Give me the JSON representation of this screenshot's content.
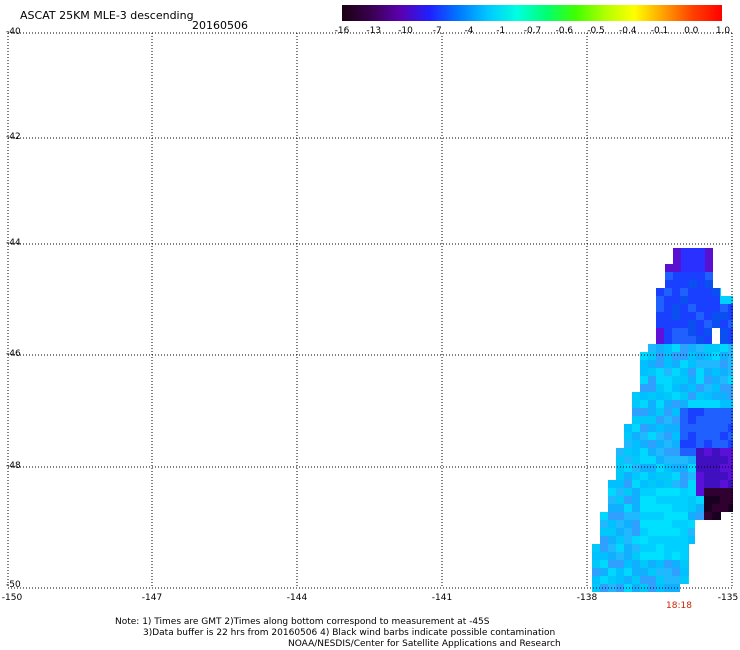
{
  "header": {
    "title": "ASCAT 25KM MLE-3 descending",
    "date": "20160506"
  },
  "colorbar": {
    "labels": [
      "-16",
      "-13",
      "-10",
      "-7",
      "-4",
      "-1",
      "-0.7",
      "-0.6",
      "-0.5",
      "-0.4",
      "-0.1",
      "0.0",
      "1.0"
    ],
    "colors": [
      "#1a0010",
      "#3a0050",
      "#5a00b0",
      "#2020ff",
      "#0078ff",
      "#00c8ff",
      "#00ffe0",
      "#00ff70",
      "#40ff00",
      "#b0ff00",
      "#ffff00",
      "#ffa000",
      "#ff4000",
      "#ff0000"
    ]
  },
  "axes": {
    "y_labels": [
      "-40",
      "-42",
      "-44",
      "-46",
      "-48",
      "-50"
    ],
    "x_labels": [
      "-150",
      "-147",
      "-144",
      "-141",
      "-138",
      "-135"
    ],
    "grid": "dotted"
  },
  "swath": {
    "time_label": "18:18"
  },
  "footer": {
    "note_line1": "Note: 1) Times are GMT 2)Times along bottom correspond to measurement at -45S",
    "note_line2": "3)Data buffer is 22 hrs from 20160506 4) Black wind barbs indicate possible contamination",
    "credit": "NOAA/NESDIS/Center for Satellite Applications and Research"
  }
}
